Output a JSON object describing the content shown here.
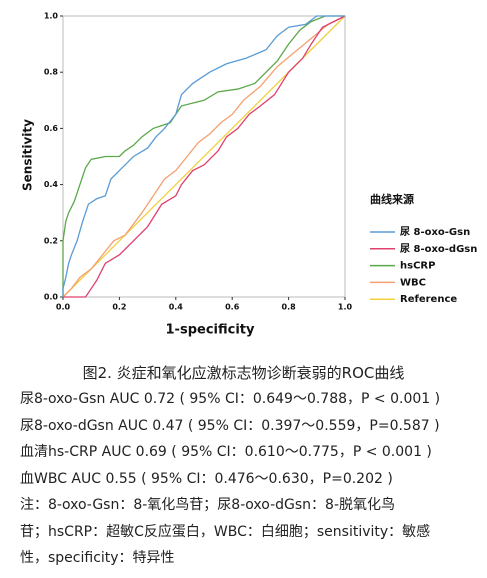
{
  "chart_data": {
    "type": "line",
    "xlabel": "1-specificity",
    "ylabel": "Sensitivity",
    "legend_title": "曲线来源",
    "xlim": [
      0,
      1
    ],
    "ylim": [
      0,
      1
    ],
    "xticks": [
      {
        "value": 0,
        "label": "0.0"
      },
      0.2,
      0.4,
      0.6,
      0.8,
      {
        "value": 1,
        "label": "1.0"
      }
    ],
    "yticks": [
      {
        "value": 0,
        "label": "0.0"
      },
      0.2,
      0.4,
      0.6,
      0.8,
      {
        "value": 1,
        "label": "1.0"
      }
    ],
    "series": [
      {
        "name": "尿 8-oxo-Gsn",
        "color": "#5b9bd5",
        "x": [
          0,
          0,
          0.01,
          0.02,
          0.03,
          0.05,
          0.07,
          0.09,
          0.12,
          0.15,
          0.17,
          0.2,
          0.25,
          0.3,
          0.33,
          0.36,
          0.4,
          0.42,
          0.46,
          0.52,
          0.58,
          0.65,
          0.72,
          0.76,
          0.8,
          0.86,
          0.9,
          1
        ],
        "values": [
          0,
          0.03,
          0.07,
          0.12,
          0.15,
          0.2,
          0.27,
          0.33,
          0.35,
          0.36,
          0.42,
          0.45,
          0.5,
          0.53,
          0.57,
          0.6,
          0.65,
          0.72,
          0.76,
          0.8,
          0.83,
          0.85,
          0.88,
          0.93,
          0.96,
          0.97,
          1,
          1
        ]
      },
      {
        "name": "尿 8-oxo-dGsn",
        "color": "#e0406e",
        "x": [
          0,
          0.08,
          0.1,
          0.12,
          0.15,
          0.2,
          0.25,
          0.3,
          0.35,
          0.4,
          0.42,
          0.46,
          0.5,
          0.55,
          0.58,
          0.62,
          0.66,
          0.7,
          0.75,
          0.8,
          0.85,
          0.88,
          0.92,
          0.96,
          1
        ],
        "values": [
          0,
          0,
          0.03,
          0.06,
          0.12,
          0.15,
          0.2,
          0.25,
          0.33,
          0.36,
          0.4,
          0.45,
          0.47,
          0.52,
          0.57,
          0.6,
          0.65,
          0.68,
          0.72,
          0.8,
          0.85,
          0.9,
          0.96,
          0.98,
          1
        ]
      },
      {
        "name": "hsCRP",
        "color": "#5aa84a",
        "x": [
          0,
          0,
          0.01,
          0.02,
          0.04,
          0.06,
          0.08,
          0.1,
          0.15,
          0.2,
          0.22,
          0.25,
          0.28,
          0.32,
          0.38,
          0.42,
          0.5,
          0.55,
          0.62,
          0.68,
          0.72,
          0.76,
          0.8,
          0.84,
          0.88,
          0.93,
          1
        ],
        "values": [
          0,
          0.2,
          0.27,
          0.3,
          0.34,
          0.4,
          0.46,
          0.49,
          0.5,
          0.5,
          0.52,
          0.54,
          0.57,
          0.6,
          0.62,
          0.68,
          0.7,
          0.73,
          0.74,
          0.76,
          0.8,
          0.84,
          0.9,
          0.95,
          0.98,
          1,
          1
        ]
      },
      {
        "name": "WBC",
        "color": "#f4a070",
        "x": [
          0,
          0.03,
          0.06,
          0.1,
          0.14,
          0.18,
          0.22,
          0.28,
          0.32,
          0.36,
          0.4,
          0.44,
          0.48,
          0.52,
          0.56,
          0.6,
          0.64,
          0.7,
          0.76,
          0.82,
          0.88,
          0.94,
          1
        ],
        "values": [
          0,
          0.03,
          0.07,
          0.1,
          0.15,
          0.2,
          0.22,
          0.3,
          0.36,
          0.42,
          0.45,
          0.5,
          0.55,
          0.58,
          0.62,
          0.65,
          0.7,
          0.75,
          0.82,
          0.87,
          0.92,
          0.97,
          1
        ]
      },
      {
        "name": "Reference",
        "color": "#f0d040",
        "x": [
          0,
          1
        ],
        "values": [
          0,
          1
        ]
      }
    ]
  },
  "caption": {
    "title": "图2. 炎症和氧化应激标志物诊断衰弱的ROC曲线",
    "lines": [
      "尿8-oxo-Gsn AUC 0.72 ( 95% CI：0.649～0.788，P < 0.001 )",
      "尿8-oxo-dGsn AUC 0.47 ( 95% CI：0.397～0.559，P=0.587 )",
      "血清hs-CRP AUC 0.69 ( 95% CI：0.610～0.775，P < 0.001 )",
      "血WBC AUC 0.55 ( 95% CI：0.476～0.630，P=0.202 )",
      "注：8-oxo-Gsn：8-氧化鸟苷；尿8-oxo-dGsn：8-脱氧化鸟",
      "苷；hsCRP：超敏C反应蛋白，WBC：白细胞；sensitivity：敏感",
      "性，specificity：特异性"
    ]
  }
}
